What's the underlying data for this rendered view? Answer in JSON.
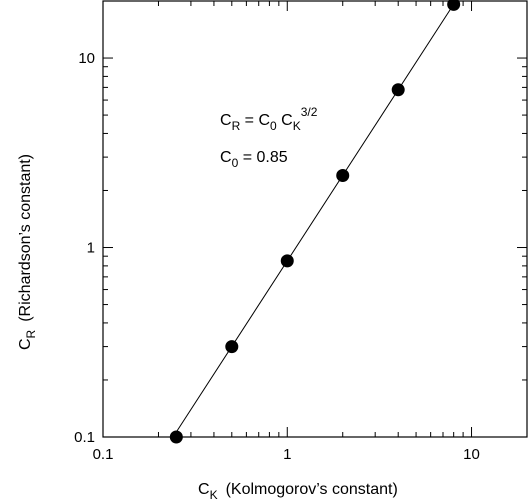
{
  "chart_data": {
    "type": "scatter",
    "scale": "log-log",
    "title": "",
    "xlabel": {
      "main": "C",
      "sub": "K",
      "rest": "(Kolmogorov’s constant)"
    },
    "ylabel": {
      "main": "C",
      "sub": "R",
      "rest": "(Richardson’s constant)"
    },
    "xlim": [
      0.1,
      20
    ],
    "ylim": [
      0.1,
      20
    ],
    "x_ticks": [
      "0.1",
      "1",
      "10"
    ],
    "y_ticks": [
      "0.1",
      "1",
      "10"
    ],
    "grid": false,
    "series": [
      {
        "marker": "filled-circle",
        "color": "#000000",
        "x": [
          0.25,
          0.5,
          1,
          2,
          4,
          8
        ],
        "y": [
          0.1,
          0.3,
          0.85,
          2.4,
          6.8,
          19.2
        ]
      }
    ],
    "fit_line": {
      "style": "solid",
      "color": "#000000",
      "formula": "C_R = C_0 C_K^(3/2)",
      "C0": 0.85,
      "exponent": 1.5
    },
    "annotations": {
      "eq_lhs": "C",
      "eq_lhs_sub": "R",
      "eq_mid": " = C",
      "eq_mid_sub": "0",
      "eq_rhs": " C",
      "eq_rhs_sub": "K",
      "eq_rhs_sup": "3/2",
      "c0_main": "C",
      "c0_sub": "0",
      "c0_rest": " = 0.85"
    }
  }
}
